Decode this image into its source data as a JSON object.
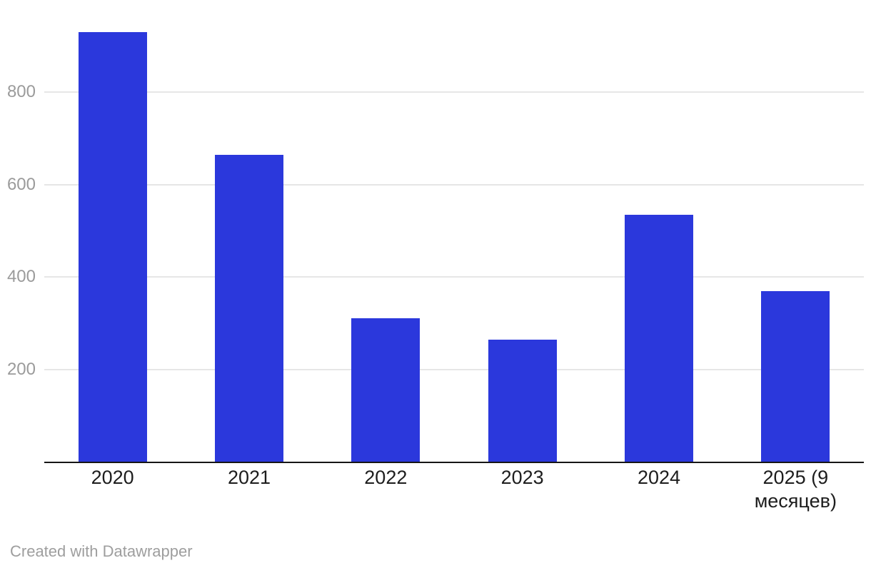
{
  "chart_data": {
    "type": "bar",
    "categories": [
      "2020",
      "2021",
      "2022",
      "2023",
      "2024",
      "2025 (9 месяцев)"
    ],
    "values": [
      930,
      665,
      310,
      265,
      535,
      370
    ],
    "title": "",
    "xlabel": "",
    "ylabel": "",
    "ylim": [
      0,
      1000
    ],
    "yticks": [
      200,
      400,
      600,
      800
    ],
    "grid": true,
    "legend": false
  },
  "colors": {
    "bar": "#2b38dc",
    "gridline": "#e6e6e6",
    "axis_line": "#161616",
    "y_tick_label": "#9b9b9b",
    "x_tick_label": "#1d1d1d",
    "footer_text": "#9e9e9e",
    "background": "#ffffff"
  },
  "footer": {
    "credit": "Created with Datawrapper"
  }
}
